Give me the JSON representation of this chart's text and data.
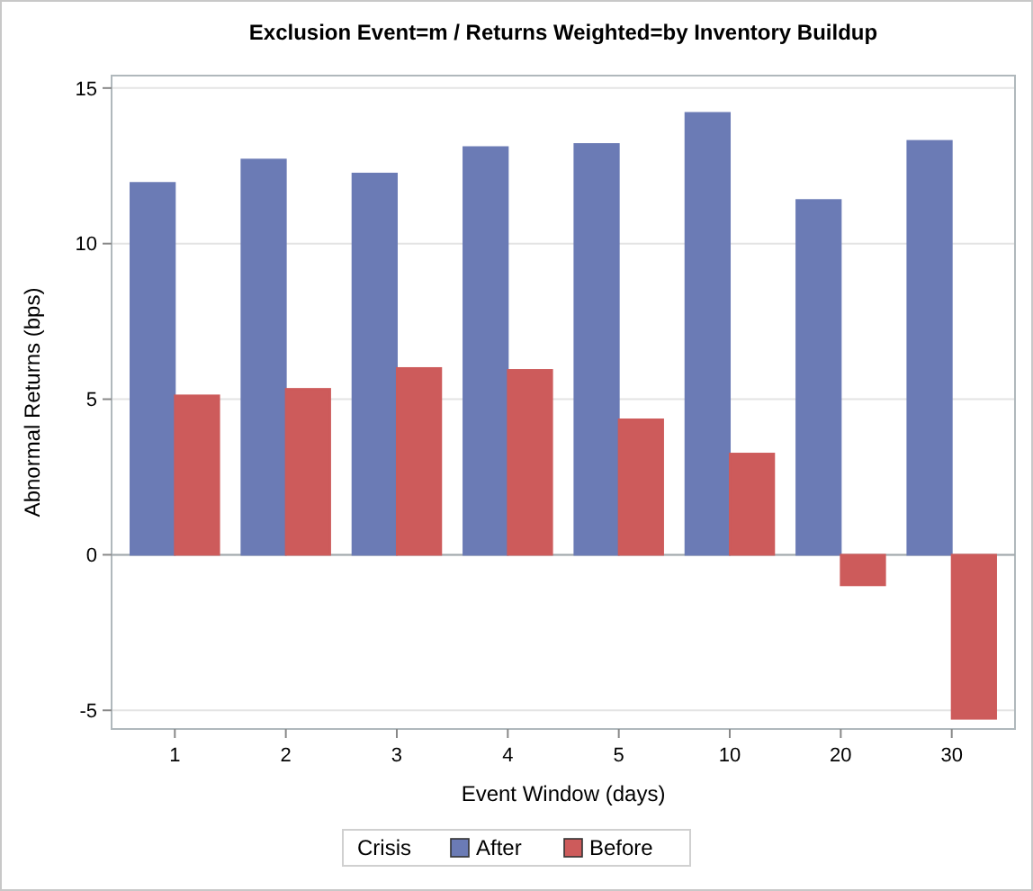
{
  "chart_data": {
    "type": "bar",
    "title": "Exclusion Event=m /  Returns Weighted=by Inventory Buildup",
    "xlabel": "Event Window (days)",
    "ylabel": "Abnormal Returns (bps)",
    "legend_title": "Crisis",
    "categories": [
      "1",
      "2",
      "3",
      "4",
      "5",
      "10",
      "20",
      "30"
    ],
    "series": [
      {
        "name": "After",
        "color": "#6b7bb5",
        "values": [
          11.95,
          12.7,
          12.25,
          13.1,
          13.2,
          14.2,
          11.4,
          13.3
        ]
      },
      {
        "name": "Before",
        "color": "#cd5b5b",
        "values": [
          5.12,
          5.33,
          6.0,
          5.94,
          4.35,
          3.25,
          -0.98,
          -5.27
        ]
      }
    ],
    "ylim": [
      -5.6,
      15.4
    ],
    "yticks": [
      -5,
      0,
      5,
      10,
      15
    ],
    "grid": "y",
    "legend": "bottom"
  }
}
